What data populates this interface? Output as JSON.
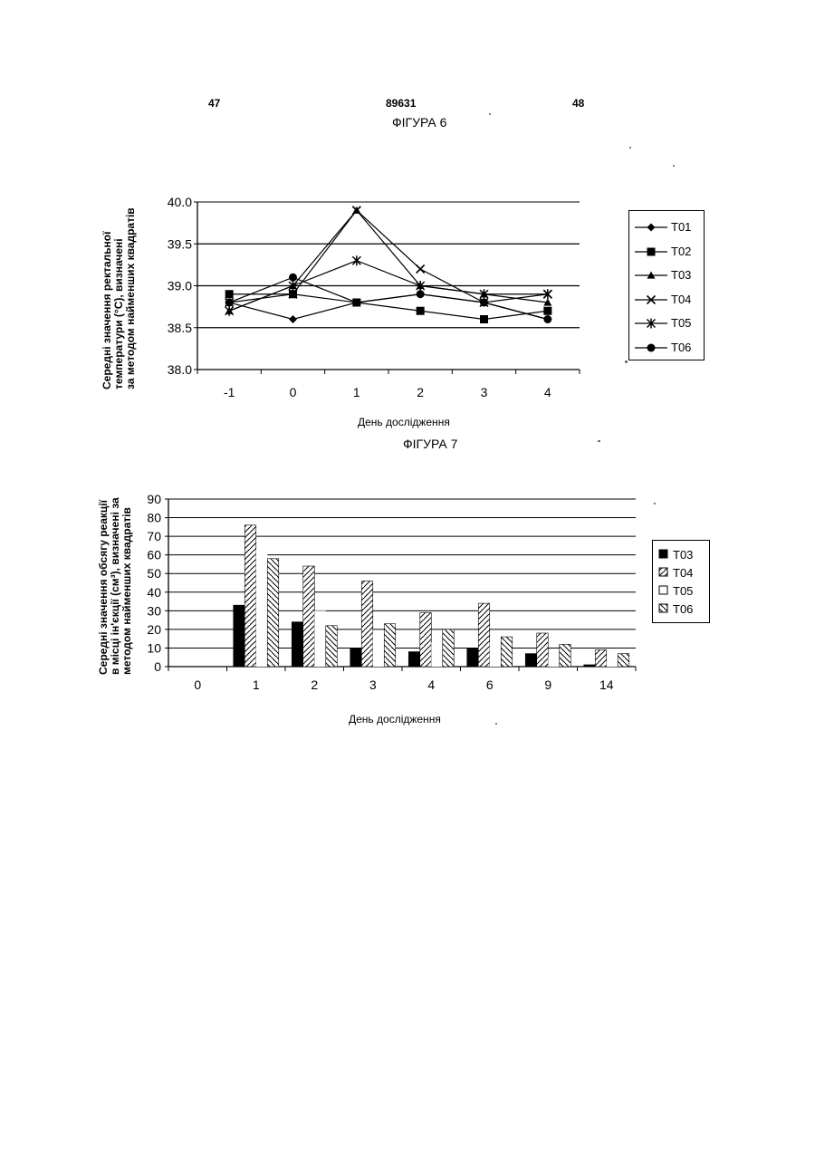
{
  "header": {
    "page_left": "47",
    "patent_number": "89631",
    "page_right": "48"
  },
  "figure6": {
    "title": "ФІГУРА 6"
  },
  "figure7": {
    "title": "ФІГУРА 7"
  },
  "chart_data": [
    {
      "type": "line",
      "title": "",
      "xlabel": "День дослідження",
      "ylabel_lines": [
        "Середні значення ректальної",
        "температури (°С), визначені",
        "за методом найменших квадратів"
      ],
      "ylim": [
        38.0,
        40.0
      ],
      "y_ticks": [
        "38.0",
        "38.5",
        "39.0",
        "39.5",
        "40.0"
      ],
      "x": [
        "-1",
        "0",
        "1",
        "2",
        "3",
        "4"
      ],
      "legend_position": "right",
      "gridlines": [
        38.5,
        39.0,
        39.5
      ],
      "series": [
        {
          "name": "Т01",
          "marker": "diamond",
          "values": [
            38.8,
            38.6,
            38.8,
            38.9,
            38.8,
            38.6
          ]
        },
        {
          "name": "Т02",
          "marker": "square",
          "values": [
            38.9,
            38.9,
            38.8,
            38.7,
            38.6,
            38.7
          ]
        },
        {
          "name": "Т03",
          "marker": "triangle",
          "values": [
            38.7,
            39.0,
            39.9,
            39.0,
            38.9,
            38.8
          ]
        },
        {
          "name": "Т04",
          "marker": "x",
          "values": [
            38.8,
            38.9,
            39.9,
            39.2,
            38.8,
            38.9
          ]
        },
        {
          "name": "Т05",
          "marker": "star",
          "values": [
            38.7,
            39.0,
            39.3,
            39.0,
            38.9,
            38.9
          ]
        },
        {
          "name": "Т06",
          "marker": "circle",
          "values": [
            38.8,
            39.1,
            38.8,
            38.9,
            38.8,
            38.6
          ]
        }
      ]
    },
    {
      "type": "bar",
      "title": "",
      "xlabel": "День дослідження",
      "ylabel_lines": [
        "Середні значення обсягу реакції",
        "в місці ін'єкції (см³), визначені за",
        "методом  найменших квадратів"
      ],
      "ylim": [
        0,
        90
      ],
      "y_ticks": [
        "0",
        "10",
        "20",
        "30",
        "40",
        "50",
        "60",
        "70",
        "80",
        "90"
      ],
      "categories": [
        "0",
        "1",
        "2",
        "3",
        "4",
        "6",
        "9",
        "14"
      ],
      "legend_position": "right",
      "series": [
        {
          "name": "Т03",
          "pattern": "solid",
          "values": [
            0,
            33,
            24,
            10,
            8,
            10,
            7,
            1
          ]
        },
        {
          "name": "Т04",
          "pattern": "hatch-back",
          "values": [
            0,
            76,
            54,
            46,
            29,
            34,
            18,
            9
          ]
        },
        {
          "name": "Т05",
          "pattern": "empty",
          "values": [
            0,
            63,
            30,
            19,
            13,
            13,
            5,
            3
          ]
        },
        {
          "name": "Т06",
          "pattern": "hatch-fwd",
          "values": [
            0,
            58,
            22,
            23,
            20,
            16,
            12,
            7
          ]
        }
      ]
    }
  ]
}
